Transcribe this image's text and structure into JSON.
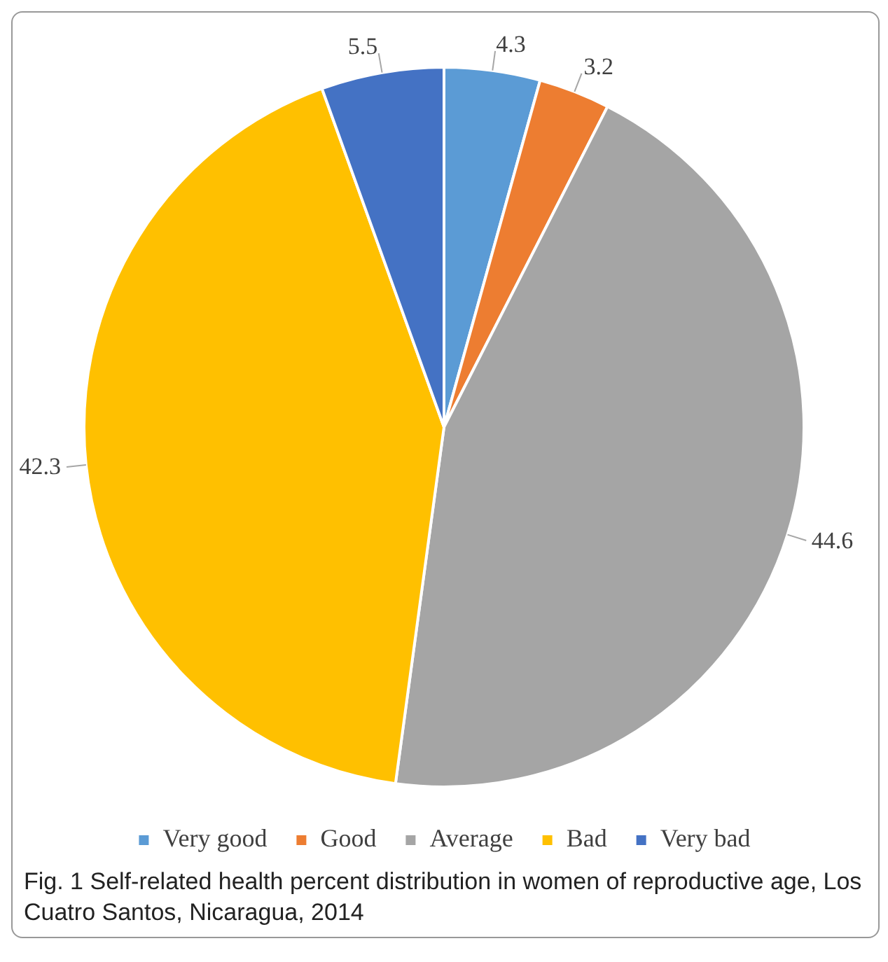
{
  "chart_data": {
    "type": "pie",
    "categories": [
      "Very good",
      "Good",
      "Average",
      "Bad",
      "Very bad"
    ],
    "values": [
      4.3,
      3.2,
      44.6,
      42.3,
      5.5
    ],
    "colors": [
      "#5b9bd5",
      "#ed7d31",
      "#a5a5a5",
      "#ffc000",
      "#4472c4"
    ],
    "data_labels": true,
    "legend": "bottom",
    "annotations": [
      "Fig. 1 Self-related health percent distribution in women of reproductive age, Los Cuatro Santos, Nicaragua, 2014"
    ]
  }
}
